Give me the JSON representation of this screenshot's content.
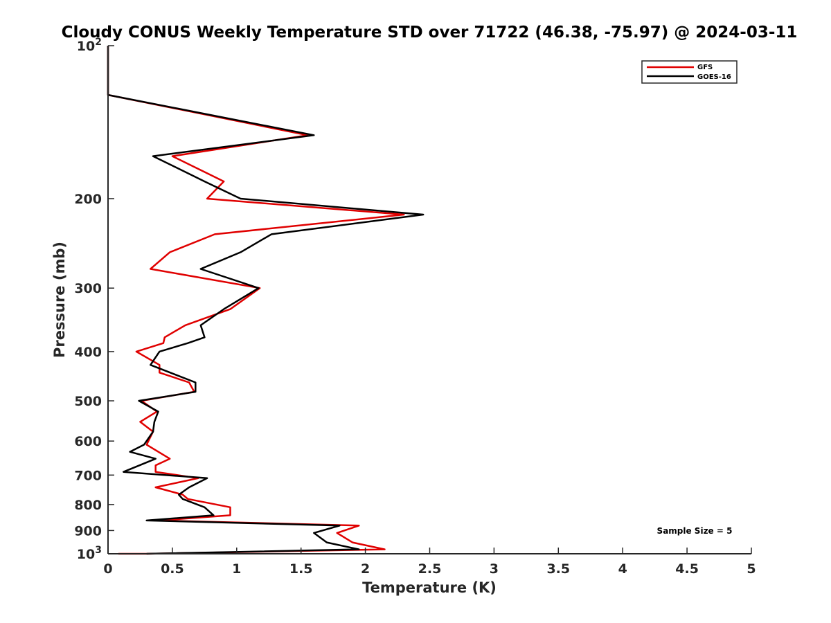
{
  "chart_data": {
    "type": "line",
    "title": "Cloudy CONUS Weekly Temperature STD over 71722 (46.38, -75.97) @ 2024-03-11",
    "xlabel": "Temperature (K)",
    "ylabel": "Pressure (mb)",
    "xlim": [
      0,
      5
    ],
    "ylim": [
      100,
      1000
    ],
    "yscale": "log",
    "y_reversed": true,
    "grid": false,
    "legend_position": "top-right",
    "x_ticks": [
      "0",
      "0.5",
      "1",
      "1.5",
      "2",
      "2.5",
      "3",
      "3.5",
      "4",
      "4.5",
      "5"
    ],
    "y_ticks": [
      {
        "value": 100,
        "base": "10",
        "exp": "2"
      },
      {
        "value": 200,
        "label": "200"
      },
      {
        "value": 300,
        "label": "300"
      },
      {
        "value": 400,
        "label": "400"
      },
      {
        "value": 500,
        "label": "500"
      },
      {
        "value": 600,
        "label": "600"
      },
      {
        "value": 700,
        "label": "700"
      },
      {
        "value": 800,
        "label": "800"
      },
      {
        "value": 900,
        "label": "900"
      },
      {
        "value": 1000,
        "base": "10",
        "exp": "3"
      }
    ],
    "series": [
      {
        "name": "GFS",
        "color": "#e00000",
        "points": [
          [
            0.0,
            100
          ],
          [
            0.0,
            125
          ],
          [
            1.55,
            150
          ],
          [
            0.5,
            165
          ],
          [
            0.9,
            185
          ],
          [
            0.77,
            200
          ],
          [
            2.3,
            215
          ],
          [
            0.83,
            235
          ],
          [
            0.48,
            255
          ],
          [
            0.33,
            275
          ],
          [
            1.18,
            300
          ],
          [
            0.95,
            330
          ],
          [
            0.6,
            355
          ],
          [
            0.44,
            375
          ],
          [
            0.43,
            385
          ],
          [
            0.22,
            400
          ],
          [
            0.4,
            425
          ],
          [
            0.4,
            440
          ],
          [
            0.63,
            460
          ],
          [
            0.67,
            480
          ],
          [
            0.26,
            500
          ],
          [
            0.38,
            525
          ],
          [
            0.25,
            550
          ],
          [
            0.35,
            575
          ],
          [
            0.3,
            610
          ],
          [
            0.48,
            650
          ],
          [
            0.37,
            670
          ],
          [
            0.37,
            690
          ],
          [
            0.7,
            710
          ],
          [
            0.37,
            740
          ],
          [
            0.58,
            765
          ],
          [
            0.62,
            780
          ],
          [
            0.95,
            810
          ],
          [
            0.95,
            840
          ],
          [
            0.4,
            860
          ],
          [
            1.95,
            880
          ],
          [
            1.78,
            910
          ],
          [
            1.9,
            950
          ],
          [
            2.15,
            980
          ],
          [
            0.3,
            1000
          ],
          [
            0.08,
            1000
          ]
        ]
      },
      {
        "name": "GOES-16",
        "color": "#000000",
        "points": [
          [
            0.0,
            100
          ],
          [
            0.0,
            125
          ],
          [
            1.6,
            150
          ],
          [
            0.35,
            165
          ],
          [
            0.75,
            185
          ],
          [
            1.03,
            200
          ],
          [
            2.45,
            215
          ],
          [
            1.27,
            235
          ],
          [
            1.03,
            255
          ],
          [
            0.72,
            275
          ],
          [
            1.17,
            300
          ],
          [
            0.9,
            330
          ],
          [
            0.72,
            355
          ],
          [
            0.75,
            375
          ],
          [
            0.62,
            385
          ],
          [
            0.4,
            400
          ],
          [
            0.33,
            425
          ],
          [
            0.68,
            460
          ],
          [
            0.68,
            480
          ],
          [
            0.24,
            500
          ],
          [
            0.39,
            525
          ],
          [
            0.36,
            550
          ],
          [
            0.35,
            575
          ],
          [
            0.28,
            610
          ],
          [
            0.17,
            630
          ],
          [
            0.37,
            650
          ],
          [
            0.12,
            690
          ],
          [
            0.77,
            710
          ],
          [
            0.63,
            740
          ],
          [
            0.55,
            765
          ],
          [
            0.58,
            780
          ],
          [
            0.75,
            810
          ],
          [
            0.82,
            840
          ],
          [
            0.3,
            860
          ],
          [
            1.8,
            880
          ],
          [
            1.6,
            910
          ],
          [
            1.7,
            950
          ],
          [
            1.95,
            980
          ],
          [
            0.3,
            1000
          ]
        ]
      }
    ],
    "annotations": [
      "Sample Size = 5"
    ]
  }
}
